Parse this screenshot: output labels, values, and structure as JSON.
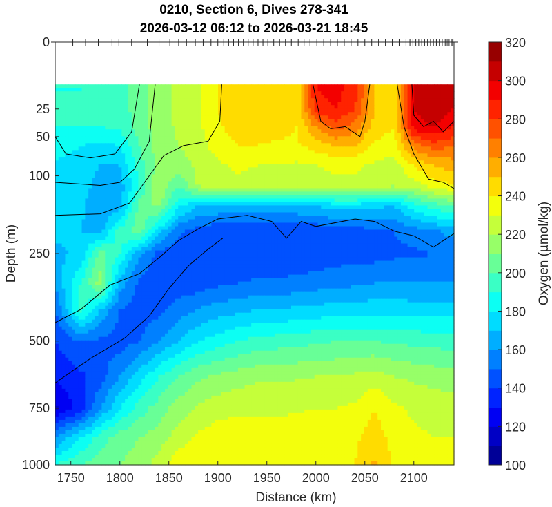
{
  "chart_data": {
    "type": "heatmap",
    "title": [
      "0210, Section 6, Dives 278-341",
      "2026-03-12 06:12 to 2026-03-21 18:45"
    ],
    "xlabel": "Distance (km)",
    "ylabel": "Depth (m)",
    "colorbar_label": "Oxygen (µmol/kg)",
    "xlim": [
      1734,
      2141
    ],
    "ylim": [
      0,
      1000
    ],
    "y_scale": "sqrt",
    "x_ticks": [
      1750,
      1800,
      1850,
      1900,
      1950,
      2000,
      2050,
      2100
    ],
    "y_ticks": [
      0,
      25,
      50,
      100,
      250,
      500,
      750,
      1000
    ],
    "clim": [
      100,
      320
    ],
    "colorbar_ticks": [
      100,
      120,
      140,
      160,
      180,
      200,
      220,
      240,
      260,
      280,
      300,
      320
    ],
    "colormap": "jet",
    "contour_step": 10,
    "data_top_depth": 10,
    "distance": [
      1734,
      1760,
      1780,
      1800,
      1820,
      1840,
      1860,
      1880,
      1900,
      1920,
      1940,
      1960,
      1980,
      2000,
      2020,
      2040,
      2060,
      2080,
      2100,
      2120,
      2141
    ],
    "depth": [
      10,
      25,
      40,
      60,
      85,
      115,
      150,
      200,
      250,
      325,
      400,
      500,
      625,
      750,
      875,
      1000
    ],
    "oxygen": [
      [
        190,
        190,
        192,
        195,
        205,
        215,
        222,
        228,
        240,
        245,
        245,
        245,
        240,
        290,
        295,
        285,
        250,
        245,
        300,
        310,
        305
      ],
      [
        190,
        190,
        192,
        195,
        205,
        215,
        222,
        228,
        240,
        245,
        245,
        245,
        240,
        285,
        290,
        280,
        250,
        245,
        300,
        308,
        300
      ],
      [
        190,
        190,
        190,
        192,
        205,
        215,
        222,
        228,
        238,
        245,
        245,
        245,
        240,
        260,
        275,
        265,
        245,
        240,
        295,
        300,
        290
      ],
      [
        185,
        180,
        178,
        180,
        200,
        215,
        220,
        225,
        235,
        240,
        240,
        238,
        238,
        245,
        250,
        250,
        238,
        235,
        265,
        275,
        270
      ],
      [
        178,
        175,
        170,
        170,
        195,
        215,
        215,
        222,
        228,
        232,
        230,
        230,
        228,
        230,
        232,
        232,
        228,
        225,
        240,
        250,
        255
      ],
      [
        178,
        175,
        165,
        165,
        190,
        220,
        200,
        222,
        225,
        228,
        225,
        225,
        225,
        225,
        228,
        228,
        225,
        222,
        225,
        235,
        240
      ],
      [
        178,
        172,
        162,
        165,
        205,
        212,
        182,
        170,
        168,
        165,
        165,
        165,
        168,
        170,
        175,
        175,
        172,
        170,
        185,
        195,
        200
      ],
      [
        172,
        170,
        165,
        195,
        205,
        175,
        152,
        145,
        142,
        140,
        140,
        142,
        142,
        142,
        145,
        145,
        148,
        150,
        155,
        158,
        165
      ],
      [
        168,
        172,
        205,
        190,
        162,
        146,
        142,
        140,
        140,
        140,
        140,
        142,
        142,
        143,
        145,
        145,
        146,
        148,
        148,
        150,
        150
      ],
      [
        162,
        190,
        215,
        165,
        148,
        142,
        143,
        145,
        148,
        150,
        152,
        152,
        153,
        155,
        157,
        158,
        160,
        160,
        160,
        160,
        160
      ],
      [
        150,
        195,
        170,
        150,
        145,
        147,
        155,
        160,
        165,
        167,
        170,
        170,
        172,
        173,
        175,
        175,
        176,
        176,
        175,
        175,
        175
      ],
      [
        140,
        150,
        148,
        145,
        150,
        160,
        170,
        180,
        185,
        190,
        193,
        195,
        196,
        198,
        200,
        200,
        200,
        198,
        197,
        196,
        195
      ],
      [
        132,
        138,
        145,
        160,
        175,
        190,
        200,
        208,
        212,
        215,
        218,
        218,
        219,
        220,
        220,
        222,
        225,
        220,
        218,
        216,
        215
      ],
      [
        118,
        135,
        160,
        180,
        195,
        205,
        215,
        222,
        226,
        228,
        228,
        228,
        229,
        230,
        230,
        232,
        240,
        232,
        228,
        226,
        225
      ],
      [
        160,
        180,
        195,
        205,
        210,
        215,
        225,
        232,
        236,
        236,
        235,
        235,
        235,
        235,
        236,
        238,
        245,
        236,
        232,
        230,
        230
      ],
      [
        190,
        200,
        205,
        210,
        215,
        225,
        238,
        238,
        240,
        240,
        238,
        238,
        238,
        237,
        238,
        240,
        252,
        238,
        236,
        234,
        235
      ]
    ],
    "contour_lines": [
      [
        [
          1734,
          50
        ],
        [
          1745,
          70
        ],
        [
          1770,
          75
        ],
        [
          1795,
          70
        ],
        [
          1812,
          45
        ],
        [
          1820,
          10
        ]
      ],
      [
        [
          1734,
          110
        ],
        [
          1780,
          115
        ],
        [
          1800,
          110
        ],
        [
          1815,
          90
        ],
        [
          1830,
          55
        ],
        [
          1836,
          10
        ]
      ],
      [
        [
          1734,
          168
        ],
        [
          1780,
          165
        ],
        [
          1810,
          145
        ],
        [
          1830,
          100
        ],
        [
          1845,
          72
        ],
        [
          1865,
          60
        ],
        [
          1890,
          55
        ],
        [
          1902,
          35
        ],
        [
          1904,
          10
        ]
      ],
      [
        [
          1734,
          440
        ],
        [
          1760,
          400
        ],
        [
          1790,
          330
        ],
        [
          1820,
          300
        ],
        [
          1840,
          260
        ],
        [
          1860,
          220
        ],
        [
          1880,
          195
        ],
        [
          1900,
          175
        ],
        [
          1930,
          168
        ],
        [
          1955,
          180
        ],
        [
          1970,
          215
        ],
        [
          1985,
          180
        ],
        [
          2000,
          190
        ],
        [
          2040,
          175
        ],
        [
          2060,
          180
        ],
        [
          2080,
          200
        ],
        [
          2100,
          210
        ],
        [
          2120,
          235
        ],
        [
          2141,
          205
        ]
      ],
      [
        [
          1734,
          650
        ],
        [
          1770,
          560
        ],
        [
          1805,
          490
        ],
        [
          1830,
          420
        ],
        [
          1850,
          340
        ],
        [
          1870,
          280
        ],
        [
          1890,
          240
        ],
        [
          1905,
          215
        ]
      ],
      [
        [
          2083,
          10
        ],
        [
          2090,
          40
        ],
        [
          2100,
          70
        ],
        [
          2115,
          105
        ],
        [
          2130,
          110
        ],
        [
          2141,
          120
        ]
      ],
      [
        [
          1997,
          10
        ],
        [
          2005,
          35
        ],
        [
          2015,
          42
        ],
        [
          2030,
          40
        ],
        [
          2045,
          50
        ],
        [
          2050,
          35
        ],
        [
          2055,
          10
        ]
      ],
      [
        [
          2098,
          10
        ],
        [
          2100,
          30
        ],
        [
          2110,
          40
        ],
        [
          2120,
          35
        ],
        [
          2130,
          45
        ],
        [
          2141,
          35
        ]
      ]
    ],
    "dive_distances": [
      1752,
      1765,
      1778,
      1792,
      1799,
      1812,
      1828,
      1840,
      1851,
      1860,
      1868,
      1877,
      1885,
      1893,
      1900,
      1906,
      1911,
      1916,
      1921,
      1926,
      1931,
      1936,
      1941,
      1946,
      1951,
      1957,
      1963,
      1969,
      1975,
      1982,
      1988,
      1994,
      2001,
      2008,
      2015,
      2022,
      2029,
      2036,
      2043,
      2050,
      2057,
      2064,
      2071,
      2078,
      2085,
      2092,
      2096,
      2099,
      2102,
      2105,
      2108,
      2111,
      2114,
      2117,
      2120,
      2123,
      2126,
      2129,
      2132,
      2134,
      2136,
      2138,
      2139,
      2140
    ]
  }
}
